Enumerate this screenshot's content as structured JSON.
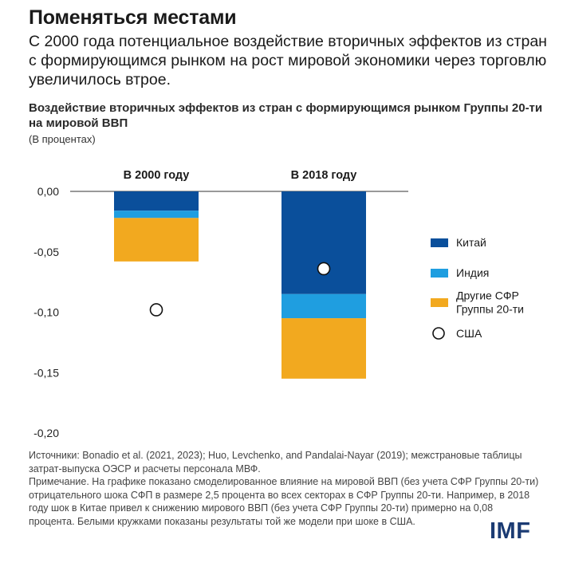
{
  "header": {
    "title": "Поменяться местами",
    "subtitle": "С 2000 года потенциальное воздействие вторичных эффектов из стран с формирующимся рынком на рост мировой экономики через торговлю увеличилось втрое."
  },
  "colors": {
    "china": "#0a4f9b",
    "india": "#1f9ee0",
    "other": "#f2a91f",
    "usa_marker_fill": "#ffffff",
    "usa_marker_stroke": "#111111",
    "logo": "#1b3b73"
  },
  "chart_data": {
    "type": "bar",
    "stacked": true,
    "title": "Воздействие вторичных эффектов из стран с формирующимся рынком Группы 20-ти на мировой ВВП",
    "unit_note": "(В процентах)",
    "categories": [
      "В 2000 году",
      "В 2018 году"
    ],
    "series": [
      {
        "name": "Китай",
        "values": [
          -0.016,
          -0.085
        ],
        "color": "#0a4f9b"
      },
      {
        "name": "Индия",
        "values": [
          -0.006,
          -0.02
        ],
        "color": "#1f9ee0"
      },
      {
        "name": "Другие СФР Группы 20-ти",
        "values": [
          -0.036,
          -0.05
        ],
        "color": "#f2a91f"
      }
    ],
    "markers": {
      "name": "США",
      "values": [
        -0.098,
        -0.064
      ]
    },
    "ylim": [
      -0.2,
      0.0
    ],
    "yticks": [
      0.0,
      -0.05,
      -0.1,
      -0.15,
      -0.2
    ],
    "ytick_labels": [
      "0,00",
      "-0,05",
      "-0,10",
      "-0,15",
      "-0,20"
    ],
    "legend": {
      "position": "right",
      "entries": [
        {
          "label_lines": [
            "Китай"
          ],
          "kind": "box",
          "color": "#0a4f9b"
        },
        {
          "label_lines": [
            "Индия"
          ],
          "kind": "box",
          "color": "#1f9ee0"
        },
        {
          "label_lines": [
            "Другие СФР",
            "Группы 20-ти"
          ],
          "kind": "box",
          "color": "#f2a91f"
        },
        {
          "label_lines": [
            "США"
          ],
          "kind": "circle"
        }
      ]
    },
    "grid": false
  },
  "footer": {
    "sources": "Источники: Bonadio et al. (2021, 2023); Huo, Levchenko, and Pandalai-Nayar (2019); межстрановые таблицы затрат-выпуска ОЭСР и расчеты персонала МВФ.",
    "note": "Примечание. На графике показано смоделированное влияние на мировой ВВП (без учета СФР Группы 20-ти) отрицательного шока СФП в размере 2,5 процента во всех секторах в СФР Группы 20-ти. Например, в 2018 году шок в Китае привел к снижению мирового ВВП (без учета СФР Группы 20-ти) примерно на 0,08 процента. Белыми кружками показаны результаты той же модели при шоке в США.",
    "logo": "IMF"
  }
}
